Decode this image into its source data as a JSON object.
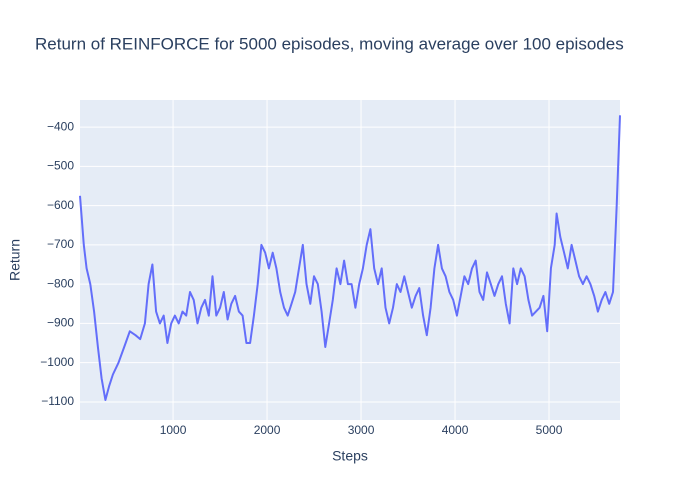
{
  "chart_data": {
    "type": "line",
    "title": "Return of REINFORCE for 5000 episodes, moving average over 100 episodes",
    "x_label": "Steps",
    "y_label": "Return",
    "xlim": [
      10,
      5755
    ],
    "ylim": [
      -1146,
      -331
    ],
    "xticks": [
      1000,
      2000,
      3000,
      4000,
      5000
    ],
    "yticks": [
      {
        "value": -1100,
        "label": "−1100"
      },
      {
        "value": -1000,
        "label": "−1000"
      },
      {
        "value": -900,
        "label": "−900"
      },
      {
        "value": -800,
        "label": "−800"
      },
      {
        "value": -700,
        "label": "−700"
      },
      {
        "value": -600,
        "label": "−600"
      },
      {
        "value": -500,
        "label": "−500"
      },
      {
        "value": -400,
        "label": "−400"
      }
    ],
    "grid": true,
    "background": "#e5ecf6",
    "series": [
      {
        "color": "#636efa",
        "x": [
          10,
          50,
          80,
          120,
          160,
          200,
          240,
          280,
          320,
          360,
          420,
          480,
          540,
          600,
          650,
          700,
          740,
          780,
          820,
          860,
          900,
          940,
          980,
          1020,
          1060,
          1100,
          1140,
          1180,
          1220,
          1260,
          1300,
          1340,
          1380,
          1420,
          1460,
          1500,
          1540,
          1580,
          1620,
          1660,
          1700,
          1740,
          1780,
          1820,
          1860,
          1900,
          1940,
          1980,
          2020,
          2060,
          2100,
          2140,
          2180,
          2220,
          2260,
          2300,
          2340,
          2380,
          2420,
          2460,
          2500,
          2540,
          2580,
          2620,
          2660,
          2700,
          2740,
          2780,
          2820,
          2860,
          2900,
          2940,
          2980,
          3020,
          3060,
          3100,
          3140,
          3180,
          3220,
          3260,
          3300,
          3340,
          3380,
          3420,
          3460,
          3500,
          3540,
          3580,
          3620,
          3660,
          3700,
          3740,
          3780,
          3820,
          3860,
          3900,
          3940,
          3980,
          4020,
          4060,
          4100,
          4140,
          4180,
          4220,
          4260,
          4300,
          4340,
          4380,
          4420,
          4460,
          4500,
          4540,
          4580,
          4620,
          4660,
          4700,
          4740,
          4780,
          4820,
          4860,
          4900,
          4940,
          4980,
          5020,
          5060,
          5080,
          5120,
          5160,
          5200,
          5240,
          5280,
          5320,
          5360,
          5400,
          5440,
          5480,
          5520,
          5560,
          5600,
          5640,
          5680,
          5720,
          5755
        ],
        "values": [
          -575,
          -700,
          -760,
          -800,
          -870,
          -960,
          -1040,
          -1095,
          -1060,
          -1030,
          -1000,
          -960,
          -920,
          -930,
          -940,
          -900,
          -800,
          -750,
          -870,
          -900,
          -880,
          -950,
          -900,
          -880,
          -900,
          -870,
          -880,
          -820,
          -840,
          -900,
          -860,
          -840,
          -880,
          -780,
          -880,
          -860,
          -820,
          -890,
          -850,
          -830,
          -870,
          -880,
          -950,
          -950,
          -880,
          -800,
          -700,
          -720,
          -760,
          -720,
          -760,
          -820,
          -860,
          -880,
          -850,
          -820,
          -760,
          -700,
          -800,
          -850,
          -780,
          -800,
          -870,
          -960,
          -900,
          -840,
          -760,
          -800,
          -740,
          -800,
          -800,
          -860,
          -800,
          -760,
          -700,
          -660,
          -760,
          -800,
          -760,
          -860,
          -900,
          -860,
          -800,
          -820,
          -780,
          -820,
          -860,
          -830,
          -810,
          -880,
          -930,
          -860,
          -760,
          -700,
          -760,
          -780,
          -820,
          -840,
          -880,
          -830,
          -780,
          -800,
          -760,
          -740,
          -820,
          -840,
          -770,
          -800,
          -830,
          -800,
          -780,
          -850,
          -900,
          -760,
          -800,
          -760,
          -780,
          -840,
          -880,
          -870,
          -860,
          -830,
          -920,
          -760,
          -700,
          -620,
          -680,
          -720,
          -760,
          -700,
          -740,
          -780,
          -800,
          -780,
          -800,
          -830,
          -870,
          -840,
          -820,
          -850,
          -820,
          -600,
          -370
        ]
      }
    ]
  }
}
